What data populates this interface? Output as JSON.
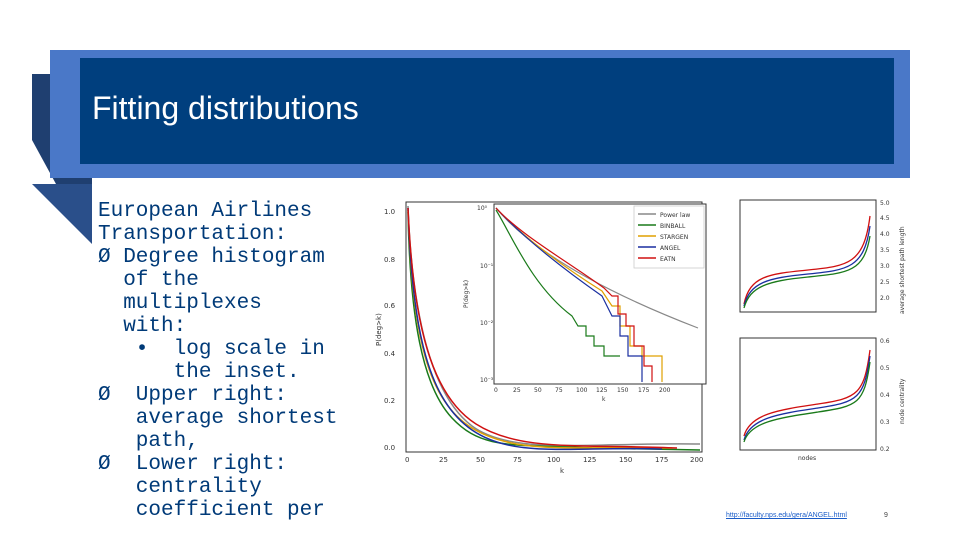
{
  "slide": {
    "title": "Fitting distributions",
    "url": "http://faculty.nps.edu/gera/ANGEL.html",
    "page_number": "9"
  },
  "body_lines": [
    "European Airlines",
    "Transportation:",
    "Ø Degree histogram",
    "  of the",
    "  multiplexes",
    "  with:",
    "   •  log scale in",
    "      the inset.",
    "Ø  Upper right:",
    "   average shortest",
    "   path,",
    "Ø  Lower right:",
    "   centrality",
    "   coefficient per"
  ],
  "figure": {
    "legend": [
      "Power law",
      "BINBALL",
      "STARGEN",
      "ANGEL",
      "EATN"
    ],
    "colors": {
      "power_law": "#888888",
      "binball": "#1a7a1a",
      "stargen": "#e0a000",
      "angel": "#1a2fa0",
      "eatn": "#d01010"
    },
    "main": {
      "ylabel": "P(deg>k)",
      "xlabel": "k",
      "yticks": [
        "1.0",
        "0.8",
        "0.6",
        "0.4",
        "0.2",
        "0.0"
      ],
      "xticks": [
        "0",
        "25",
        "50",
        "75",
        "100",
        "125",
        "150",
        "175",
        "200"
      ]
    },
    "inset": {
      "ylabel": "P(deg>k)",
      "xlabel": "k",
      "yticks": [
        "10⁰",
        "10⁻¹",
        "10⁻²",
        "10⁻³"
      ],
      "xticks": [
        "0",
        "25",
        "50",
        "75",
        "100",
        "125",
        "150",
        "175",
        "200"
      ]
    },
    "upper_right": {
      "ylabel": "average shortest path length",
      "yticks": [
        "5.0",
        "4.5",
        "4.0",
        "3.5",
        "3.0",
        "2.5",
        "2.0"
      ]
    },
    "lower_right": {
      "ylabel": "node centrality",
      "xlabel": "nodes",
      "yticks": [
        "0.6",
        "0.5",
        "0.4",
        "0.3",
        "0.2"
      ]
    }
  }
}
